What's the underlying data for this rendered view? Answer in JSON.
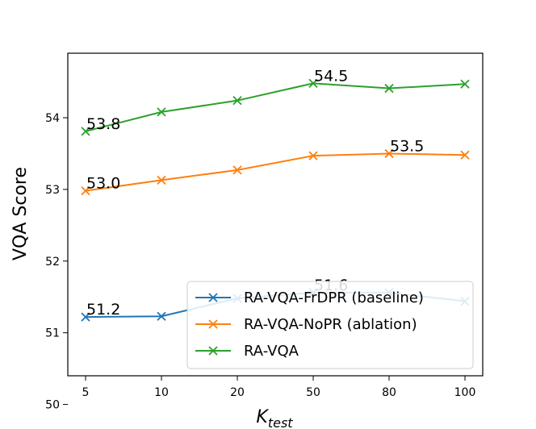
{
  "chart_data": {
    "type": "line",
    "categories": [
      "5",
      "10",
      "20",
      "50",
      "80",
      "100"
    ],
    "xlabel_main": "K",
    "xlabel_sub": "test",
    "ylabel": "VQA Score",
    "ylim": [
      50.4,
      54.9
    ],
    "yticks": [
      "50",
      "51",
      "52",
      "53",
      "54"
    ],
    "grid": false,
    "legend_position": "lower-right",
    "series": [
      {
        "name": "RA-VQA-FrDPR (baseline)",
        "color": "#1f77b4",
        "marker": "x",
        "values": [
          51.22,
          51.23,
          51.48,
          51.56,
          51.56,
          51.44
        ]
      },
      {
        "name": "RA-VQA-NoPR (ablation)",
        "color": "#ff7f0e",
        "marker": "x",
        "values": [
          52.98,
          53.13,
          53.27,
          53.47,
          53.5,
          53.48
        ]
      },
      {
        "name": "RA-VQA",
        "color": "#2ca02c",
        "marker": "x",
        "values": [
          53.81,
          54.08,
          54.24,
          54.48,
          54.41,
          54.47
        ]
      }
    ],
    "annotations": [
      {
        "text": "51.2",
        "series": 0,
        "index": 0
      },
      {
        "text": "51.6",
        "series": 0,
        "index": 3
      },
      {
        "text": "53.0",
        "series": 1,
        "index": 0
      },
      {
        "text": "53.5",
        "series": 1,
        "index": 4
      },
      {
        "text": "53.8",
        "series": 2,
        "index": 0
      },
      {
        "text": "54.5",
        "series": 2,
        "index": 3
      }
    ]
  }
}
